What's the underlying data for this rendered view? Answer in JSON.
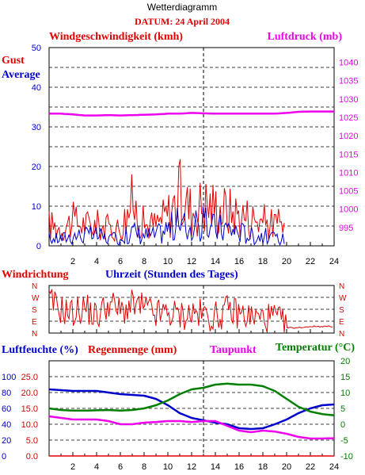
{
  "header": {
    "title": "Wetterdiagramm",
    "date_label": "DATUM: 24 April 2004"
  },
  "colors": {
    "red": "#e00000",
    "blue": "#0000cc",
    "magenta": "#ee00ee",
    "green": "#008000",
    "black": "#000000",
    "grid": "#000000"
  },
  "x_axis": {
    "label": "Uhrzeit (Stunden des Tages)",
    "range": [
      0,
      24
    ],
    "ticks": [
      "2",
      "4",
      "6",
      "8",
      "10",
      "12",
      "14",
      "16",
      "18",
      "20",
      "22",
      "24"
    ],
    "marker_hour": 13
  },
  "wind_panel": {
    "left_title": "Windgeschwindigkeit (kmh)",
    "right_title": "Luftdruck (mb)",
    "gust_label": "Gust",
    "average_label": "Average",
    "left_ticks": [
      "0",
      "10",
      "20",
      "30",
      "40",
      "50"
    ],
    "right_ticks": [
      "995",
      "1000",
      "1005",
      "1010",
      "1015",
      "1020",
      "1025",
      "1030",
      "1035",
      "1040"
    ]
  },
  "direction_panel": {
    "title": "Windrichtung",
    "labels": [
      "N",
      "W",
      "S",
      "E",
      "N"
    ]
  },
  "bottom_panel": {
    "humidity_title": "Luftfeuchte (%)",
    "rain_title": "Regenmenge (mm)",
    "dewpoint_title": "Taupunkt",
    "temperature_title": "Temperatur (°C)",
    "humidity_ticks": [
      "0",
      "20",
      "40",
      "60",
      "80",
      "100"
    ],
    "rain_ticks": [
      "0.0",
      "5.0",
      "10.0",
      "15.0",
      "20.0",
      "25.0"
    ],
    "temp_ticks": [
      "-10",
      "-5",
      "0",
      "5",
      "10",
      "15",
      "20"
    ]
  },
  "chart_data": [
    {
      "type": "line",
      "x": [
        0,
        1,
        2,
        3,
        4,
        5,
        6,
        7,
        8,
        9,
        10,
        11,
        12,
        13,
        14,
        15,
        16,
        17,
        18,
        19,
        20,
        21,
        22,
        23,
        24
      ],
      "xlim": [
        0,
        24
      ],
      "ylim": [
        0,
        50
      ],
      "y2lim": [
        990,
        1044
      ],
      "series": [
        {
          "name": "Gust",
          "axis": "left",
          "color": "#e00000",
          "values": [
            6,
            5,
            7,
            6,
            6,
            5,
            5,
            12,
            6,
            6,
            9,
            14,
            10,
            12,
            11,
            10,
            9,
            8,
            7,
            6,
            null,
            null,
            null,
            null,
            null
          ]
        },
        {
          "name": "Average",
          "axis": "left",
          "color": "#0000cc",
          "values": [
            2,
            2,
            3,
            3,
            3,
            2,
            2,
            4,
            3,
            3,
            5,
            6,
            5,
            6,
            5,
            5,
            4,
            3,
            3,
            2,
            null,
            null,
            null,
            null,
            null
          ]
        },
        {
          "name": "Luftdruck",
          "axis": "right",
          "color": "#ee00ee",
          "values": [
            1026,
            1026,
            1025.8,
            1025.5,
            1025.5,
            1025.6,
            1025.5,
            1025.6,
            1025.7,
            1025.8,
            1026,
            1026,
            1026.2,
            1026.1,
            1026,
            1026,
            1026,
            1026,
            1026,
            1026,
            1026.2,
            1026.5,
            1026.6,
            1026.6,
            1026.6
          ]
        }
      ]
    },
    {
      "type": "line",
      "x": [
        0,
        1,
        2,
        3,
        4,
        5,
        6,
        7,
        8,
        9,
        10,
        11,
        12,
        13,
        14,
        15,
        16,
        17,
        18,
        19,
        20,
        21,
        22,
        23,
        24
      ],
      "xlim": [
        0,
        24
      ],
      "y_categories": [
        "N",
        "W",
        "S",
        "E",
        "N"
      ],
      "series": [
        {
          "name": "Windrichtung",
          "color": "#e00000",
          "values_degrees": [
            240,
            180,
            150,
            200,
            120,
            230,
            160,
            210,
            190,
            140,
            150,
            130,
            150,
            140,
            120,
            170,
            150,
            120,
            110,
            120,
            40,
            40,
            50,
            50,
            50
          ]
        }
      ]
    },
    {
      "type": "line",
      "x": [
        0,
        1,
        2,
        3,
        4,
        5,
        6,
        7,
        8,
        9,
        10,
        11,
        12,
        13,
        14,
        15,
        16,
        17,
        18,
        19,
        20,
        21,
        22,
        23,
        24
      ],
      "xlim": [
        0,
        24
      ],
      "series": [
        {
          "name": "Luftfeuchte",
          "axis": "humidity",
          "ylim": [
            0,
            120
          ],
          "color": "#0000cc",
          "values": [
            84,
            83,
            82,
            82,
            82,
            80,
            78,
            77,
            76,
            72,
            64,
            54,
            48,
            45,
            42,
            40,
            35,
            34,
            35,
            40,
            46,
            54,
            60,
            64,
            65
          ]
        },
        {
          "name": "Taupunkt",
          "axis": "temperature",
          "ylim": [
            -10,
            20
          ],
          "color": "#ee00ee",
          "values": [
            2.5,
            2,
            1.5,
            1.5,
            1.5,
            1,
            0,
            0,
            0.5,
            0.7,
            1,
            1,
            0.7,
            1,
            1,
            -0.5,
            -2,
            -2.5,
            -2,
            -2.3,
            -3,
            -4,
            -4.5,
            -4.5,
            -4.4
          ]
        },
        {
          "name": "Temperatur",
          "axis": "temperature",
          "ylim": [
            -10,
            20
          ],
          "color": "#008000",
          "values": [
            5,
            4.5,
            4.3,
            4.3,
            4.4,
            4.5,
            4.3,
            4.5,
            5,
            6,
            7.5,
            9.5,
            11,
            11.5,
            12.5,
            12.8,
            12.5,
            12.5,
            12,
            10.5,
            8,
            5.5,
            4,
            3.2,
            2.8
          ]
        },
        {
          "name": "Regenmenge",
          "axis": "rain",
          "ylim": [
            0,
            30
          ],
          "color": "#e00000",
          "values": [
            0,
            0,
            0,
            0,
            0,
            0,
            0,
            0,
            0,
            0,
            0,
            0,
            0,
            0,
            0,
            0,
            0,
            0,
            0,
            0,
            0,
            0,
            0,
            0,
            0
          ]
        }
      ]
    }
  ]
}
